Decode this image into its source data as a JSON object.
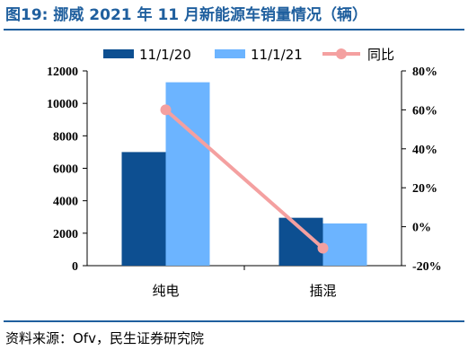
{
  "header": {
    "title": "图19: 挪威 2021 年 11 月新能源车销量情况（辆）"
  },
  "footer": {
    "source": "资料来源：Ofv，民生证券研究院"
  },
  "colors": {
    "accent": "#1f5f9e",
    "series_2020": "#0d4f91",
    "series_2021": "#6cb4ff",
    "yoy": "#f4a0a0"
  },
  "chart_data": {
    "type": "bar",
    "categories": [
      "纯电",
      "插混"
    ],
    "series": [
      {
        "name": "11/1/20",
        "type": "bar",
        "axis": "left",
        "values": [
          7000,
          2950
        ]
      },
      {
        "name": "11/1/21",
        "type": "bar",
        "axis": "left",
        "values": [
          11300,
          2600
        ]
      },
      {
        "name": "同比",
        "type": "line",
        "axis": "right",
        "values": [
          0.6,
          -0.11
        ]
      }
    ],
    "y_left": {
      "ylim": [
        0,
        12000
      ],
      "ticks": [
        0,
        2000,
        4000,
        6000,
        8000,
        10000,
        12000
      ],
      "tick_labels": [
        "0",
        "2000",
        "4000",
        "6000",
        "8000",
        "10000",
        "12000"
      ]
    },
    "y_right": {
      "ylim": [
        -0.2,
        0.8
      ],
      "ticks": [
        -0.2,
        0,
        0.2,
        0.4,
        0.6,
        0.8
      ],
      "tick_labels": [
        "-20%",
        "0%",
        "20%",
        "40%",
        "60%",
        "80%"
      ]
    },
    "legend": {
      "position": "top"
    },
    "grid": false
  }
}
